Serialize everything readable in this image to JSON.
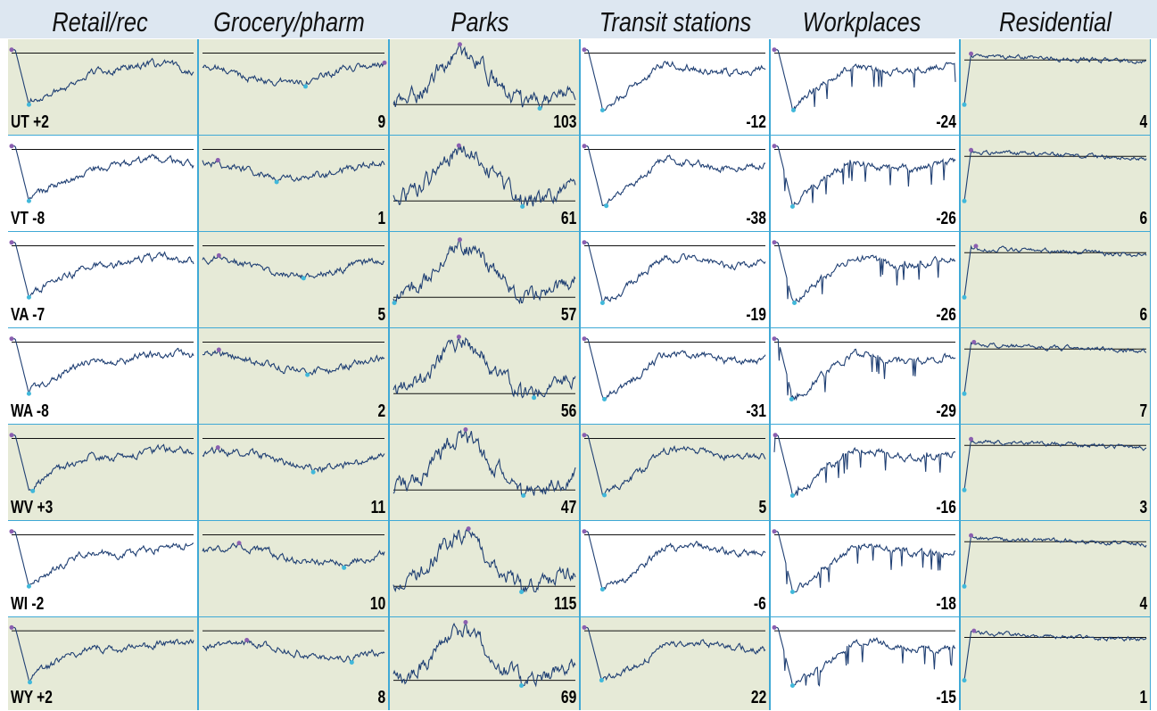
{
  "columns": [
    "Retail/rec",
    "Grocery/pharm",
    "Parks",
    "Transit stations",
    "Workplaces",
    "Residential"
  ],
  "colors": {
    "positive_bg": "#e6ead7",
    "negative_bg": "#ffffff",
    "border": "#3fa9d6",
    "line": "#1f3f73",
    "baseline": "#111111",
    "max_marker": "#8a5fb0",
    "min_marker": "#41b8da",
    "header_bg": "#dde7f1"
  },
  "chart_data": {
    "type": "line",
    "description_kind": "small-multiples sparkline grid",
    "rows": [
      "UT",
      "VT",
      "VA",
      "WA",
      "WV",
      "WI",
      "WY"
    ],
    "columns": [
      "Retail/rec",
      "Grocery/pharm",
      "Parks",
      "Transit stations",
      "Workplaces",
      "Residential"
    ],
    "cells": [
      [
        {
          "label": "UT +2",
          "value": 2
        },
        {
          "label": "9",
          "value": 9
        },
        {
          "label": "103",
          "value": 103
        },
        {
          "label": "-12",
          "value": -12
        },
        {
          "label": "-24",
          "value": -24
        },
        {
          "label": "4",
          "value": 4
        }
      ],
      [
        {
          "label": "VT -8",
          "value": -8
        },
        {
          "label": "1",
          "value": 1
        },
        {
          "label": "61",
          "value": 61
        },
        {
          "label": "-38",
          "value": -38
        },
        {
          "label": "-26",
          "value": -26
        },
        {
          "label": "6",
          "value": 6
        }
      ],
      [
        {
          "label": "VA -7",
          "value": -7
        },
        {
          "label": "5",
          "value": 5
        },
        {
          "label": "57",
          "value": 57
        },
        {
          "label": "-19",
          "value": -19
        },
        {
          "label": "-26",
          "value": -26
        },
        {
          "label": "6",
          "value": 6
        }
      ],
      [
        {
          "label": "WA -8",
          "value": -8
        },
        {
          "label": "2",
          "value": 2
        },
        {
          "label": "56",
          "value": 56
        },
        {
          "label": "-31",
          "value": -31
        },
        {
          "label": "-29",
          "value": -29
        },
        {
          "label": "7",
          "value": 7
        }
      ],
      [
        {
          "label": "WV +3",
          "value": 3
        },
        {
          "label": "11",
          "value": 11
        },
        {
          "label": "47",
          "value": 47
        },
        {
          "label": "5",
          "value": 5
        },
        {
          "label": "-16",
          "value": -16
        },
        {
          "label": "3",
          "value": 3
        }
      ],
      [
        {
          "label": "WI -2",
          "value": -2
        },
        {
          "label": "10",
          "value": 10
        },
        {
          "label": "115",
          "value": 115
        },
        {
          "label": "-6",
          "value": -6
        },
        {
          "label": "-18",
          "value": -18
        },
        {
          "label": "4",
          "value": 4
        }
      ],
      [
        {
          "label": "WY +2",
          "value": 2
        },
        {
          "label": "8",
          "value": 8
        },
        {
          "label": "69",
          "value": 69
        },
        {
          "label": "22",
          "value": 22
        },
        {
          "label": "-15",
          "value": -15
        },
        {
          "label": "1",
          "value": 1
        }
      ]
    ]
  }
}
